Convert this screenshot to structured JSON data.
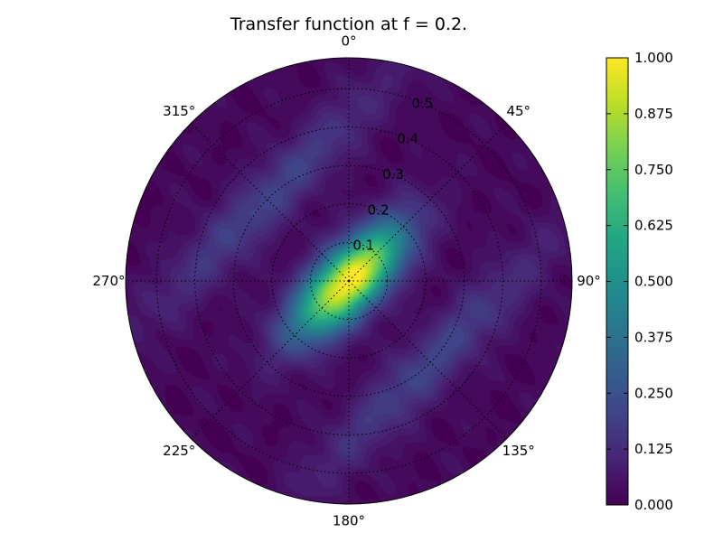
{
  "colors": {
    "colormap": "viridis",
    "axis_line": "#000000",
    "grid_line": "#000000",
    "background": "#ffffff"
  },
  "chart_data": {
    "type": "heatmap",
    "projection": "polar",
    "title": "Transfer function at f = 0.2.",
    "theta_direction": "clockwise",
    "theta_zero": "top",
    "theta_tick_labels": [
      "0°",
      "45°",
      "90°",
      "135°",
      "180°",
      "225°",
      "270°",
      "315°"
    ],
    "theta_ticks_deg": [
      0,
      45,
      90,
      135,
      180,
      225,
      270,
      315
    ],
    "r_ticks": [
      0.1,
      0.2,
      0.3,
      0.4,
      0.5
    ],
    "r_tick_labels": [
      "0.1",
      "0.2",
      "0.3",
      "0.4",
      "0.5"
    ],
    "rlim": [
      0,
      0.58
    ],
    "grid": true,
    "colorbar": {
      "cmap": "viridis",
      "vmin": 0.0,
      "vmax": 1.0,
      "ticks": [
        0.0,
        0.125,
        0.25,
        0.375,
        0.5,
        0.625,
        0.75,
        0.875,
        1.0
      ],
      "tick_labels": [
        "0.000",
        "0.125",
        "0.250",
        "0.375",
        "0.500",
        "0.625",
        "0.750",
        "0.875",
        "1.000"
      ]
    },
    "peak": {
      "theta_deg": 0,
      "r": 0.0,
      "value": 1.0
    },
    "main_lobe": {
      "orientation_deg": 45,
      "sigma_along": 0.13,
      "sigma_across": 0.055
    },
    "side_bands": [
      {
        "offset": 0.3,
        "sigma_across": 0.05,
        "sigma_along": 0.3,
        "amplitude": 0.18
      },
      {
        "offset": -0.3,
        "sigma_across": 0.05,
        "sigma_along": 0.3,
        "amplitude": 0.18
      }
    ]
  }
}
